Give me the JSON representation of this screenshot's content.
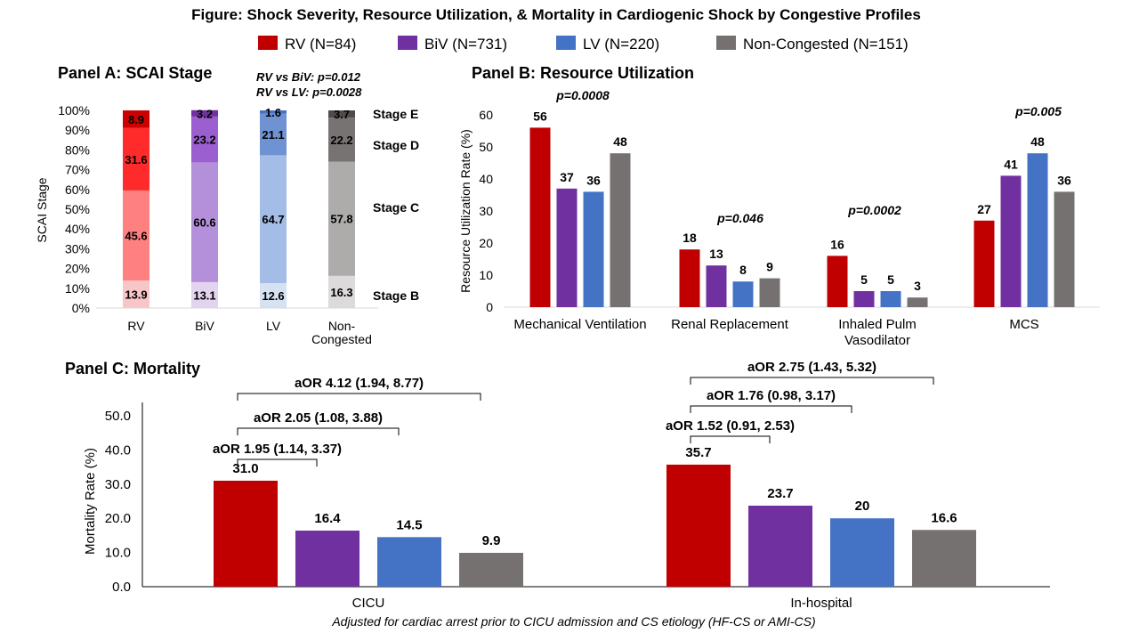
{
  "figure": {
    "title": "Figure: Shock Severity, Resource Utilization,  & Mortality  in Cardiogenic Shock by Congestive Profiles",
    "footnote": "Adjusted for cardiac arrest prior to CICU admission and CS etiology (HF-CS or AMI-CS)"
  },
  "legend": [
    {
      "label": "RV (N=84)",
      "color": "#C00000"
    },
    {
      "label": "BiV (N=731)",
      "color": "#7030A0"
    },
    {
      "label": "LV (N=220)",
      "color": "#4472C4"
    },
    {
      "label": "Non-Congested  (N=151)",
      "color": "#767171"
    }
  ],
  "chart_data": [
    {
      "type": "bar",
      "stacked": true,
      "title": "Panel A: SCAI Stage",
      "ylabel": "SCAI Stage",
      "ylim": [
        0,
        100
      ],
      "yticks": [
        "0%",
        "10%",
        "20%",
        "30%",
        "40%",
        "50%",
        "60%",
        "70%",
        "80%",
        "90%",
        "100%"
      ],
      "categories": [
        "RV",
        "BiV",
        "LV",
        "Non-\nCongested"
      ],
      "stages": [
        "Stage B",
        "Stage C",
        "Stage D",
        "Stage E"
      ],
      "series": [
        {
          "name": "Stage B",
          "values": [
            13.9,
            13.1,
            12.6,
            16.3
          ],
          "labels": [
            "13.9",
            "13.1",
            "12.6",
            "16.3"
          ],
          "colors": [
            "#F8C6C6",
            "#E2D3EE",
            "#D6E1F2",
            "#DCDADA"
          ]
        },
        {
          "name": "Stage C",
          "values": [
            45.6,
            60.6,
            64.7,
            57.8
          ],
          "labels": [
            "45.6",
            "60.6",
            "64.7",
            "57.8"
          ],
          "colors": [
            "#FF8080",
            "#B48FDA",
            "#A4BDE6",
            "#AEABAB"
          ]
        },
        {
          "name": "Stage D",
          "values": [
            31.6,
            23.2,
            21.1,
            22.2
          ],
          "labels": [
            "31.6",
            "23.2",
            "21.1",
            "22.2"
          ],
          "colors": [
            "#FF2A2A",
            "#9B5FD0",
            "#6F93D2",
            "#787373"
          ]
        },
        {
          "name": "Stage E",
          "values": [
            8.9,
            3.2,
            1.6,
            3.7
          ],
          "labels": [
            "8.9",
            "3.2",
            "1.6",
            "3.7"
          ],
          "colors": [
            "#CC0000",
            "#7030A0",
            "#4472C4",
            "#4F4B4B"
          ]
        }
      ],
      "pvalues": [
        "RV vs BiV: p=0.012",
        "RV vs LV: p=0.0028"
      ]
    },
    {
      "type": "bar",
      "title": "Panel B: Resource Utilization",
      "ylabel": "Resource Utilization Rate (%)",
      "ylim": [
        0,
        60
      ],
      "yticks": [
        "0",
        "10",
        "20",
        "30",
        "40",
        "50",
        "60"
      ],
      "categories": [
        "Mechanical Ventilation",
        "Renal Replacement",
        "Inhaled Pulm\nVasodilator",
        "MCS"
      ],
      "series": [
        {
          "name": "RV",
          "values": [
            56,
            18,
            16,
            27
          ],
          "labels": [
            "56",
            "18",
            "16",
            "27"
          ]
        },
        {
          "name": "BiV",
          "values": [
            37,
            13,
            5,
            41
          ],
          "labels": [
            "37",
            "13",
            "5",
            "41"
          ]
        },
        {
          "name": "LV",
          "values": [
            36,
            8,
            5,
            48
          ],
          "labels": [
            "36",
            "8",
            "5",
            "48"
          ]
        },
        {
          "name": "Non-Congested",
          "values": [
            48,
            9,
            3,
            36
          ],
          "labels": [
            "48",
            "9",
            "3",
            "36"
          ]
        }
      ],
      "pvalues": [
        "p=0.0008",
        "p=0.046",
        "p=0.0002",
        "p=0.005"
      ]
    },
    {
      "type": "bar",
      "title": "Panel C: Mortality",
      "ylabel": "Mortality Rate (%)",
      "ylim": [
        0,
        50
      ],
      "yticks": [
        "0.0",
        "10.0",
        "20.0",
        "30.0",
        "40.0",
        "50.0"
      ],
      "categories": [
        "CICU",
        "In-hospital"
      ],
      "series": [
        {
          "name": "RV",
          "values": [
            31.0,
            35.7
          ],
          "labels": [
            "31.0",
            "35.7"
          ]
        },
        {
          "name": "BiV",
          "values": [
            16.4,
            23.7
          ],
          "labels": [
            "16.4",
            "23.7"
          ]
        },
        {
          "name": "LV",
          "values": [
            14.5,
            20
          ],
          "labels": [
            "14.5",
            "20"
          ]
        },
        {
          "name": "Non-Congested",
          "values": [
            9.9,
            16.6
          ],
          "labels": [
            "9.9",
            "16.6"
          ]
        }
      ],
      "annotations": [
        {
          "group": 0,
          "to_series": 1,
          "text": "aOR 1.95 (1.14, 3.37)"
        },
        {
          "group": 0,
          "to_series": 2,
          "text": "aOR 2.05 (1.08, 3.88)"
        },
        {
          "group": 0,
          "to_series": 3,
          "text": "aOR 4.12 (1.94, 8.77)"
        },
        {
          "group": 1,
          "to_series": 1,
          "text": "aOR 1.52 (0.91, 2.53)"
        },
        {
          "group": 1,
          "to_series": 2,
          "text": "aOR 1.76 (0.98, 3.17)"
        },
        {
          "group": 1,
          "to_series": 3,
          "text": "aOR 2.75 (1.43, 5.32)"
        }
      ]
    }
  ]
}
